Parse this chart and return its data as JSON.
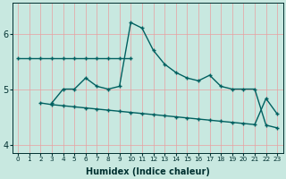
{
  "xlabel": "Humidex (Indice chaleur)",
  "bg_color": "#c8e8e0",
  "grid_color": "#e8a0a0",
  "line_color": "#006060",
  "line1_x": [
    0,
    1,
    2,
    3,
    4,
    5,
    6,
    7,
    8,
    9,
    10
  ],
  "line1_y": [
    5.55,
    5.55,
    5.55,
    5.55,
    5.55,
    5.55,
    5.55,
    5.55,
    5.55,
    5.55,
    5.55
  ],
  "line2_x": [
    3,
    4,
    5,
    6,
    7,
    8,
    9,
    10,
    11,
    12,
    13,
    14,
    15,
    16,
    17,
    18,
    19,
    20,
    21,
    22,
    23
  ],
  "line2_y": [
    4.75,
    5.0,
    5.0,
    5.2,
    5.05,
    5.0,
    5.05,
    6.2,
    6.1,
    5.7,
    5.45,
    5.3,
    5.2,
    5.15,
    5.25,
    5.05,
    5.0,
    5.0,
    5.0,
    4.35,
    4.3
  ],
  "line3_x": [
    2,
    3,
    4,
    5,
    6,
    7,
    8,
    9,
    10,
    11,
    12,
    13,
    14,
    15,
    16,
    17,
    18,
    19,
    20,
    21,
    22,
    23
  ],
  "line3_y": [
    4.75,
    4.72,
    4.7,
    4.68,
    4.66,
    4.64,
    4.62,
    4.6,
    4.58,
    4.56,
    4.54,
    4.52,
    4.5,
    4.48,
    4.46,
    4.44,
    4.42,
    4.4,
    4.38,
    4.36,
    4.83,
    4.55
  ],
  "ylim": [
    3.85,
    6.55
  ],
  "xlim": [
    -0.5,
    23.5
  ],
  "yticks": [
    4,
    5,
    6
  ],
  "xticks": [
    0,
    1,
    2,
    3,
    4,
    5,
    6,
    7,
    8,
    9,
    10,
    11,
    12,
    13,
    14,
    15,
    16,
    17,
    18,
    19,
    20,
    21,
    22,
    23
  ]
}
